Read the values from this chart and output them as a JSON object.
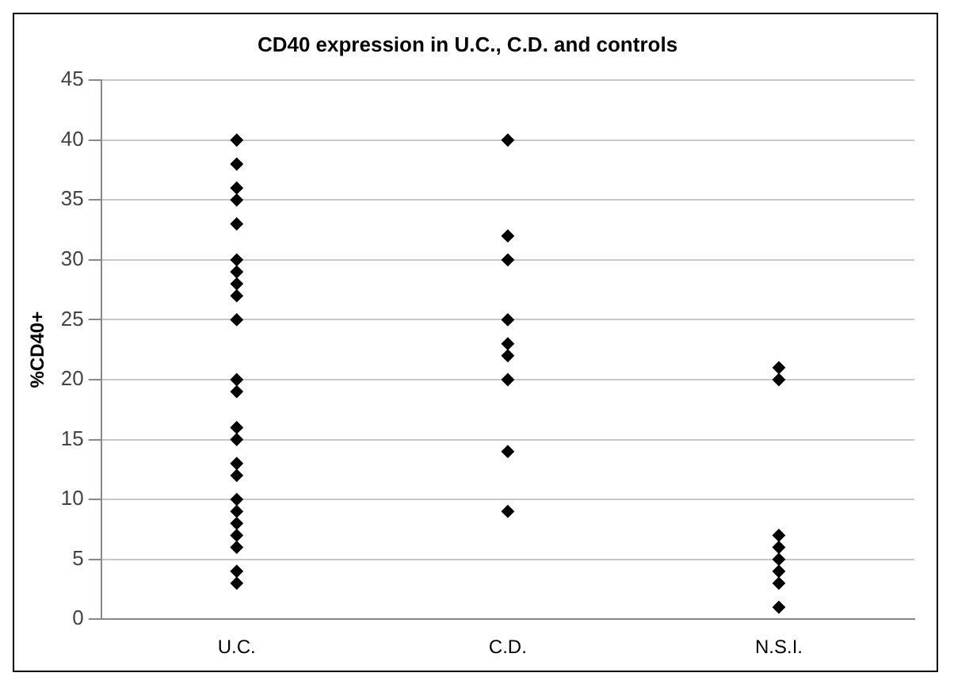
{
  "chart_data": {
    "type": "scatter",
    "title": "CD40 expression in U.C., C.D. and controls",
    "ylabel": "%CD40+",
    "categories": [
      "U.C.",
      "C.D.",
      "N.S.I."
    ],
    "series": [
      {
        "color": "#000000",
        "x": [
          "U.C.",
          "U.C.",
          "U.C.",
          "U.C.",
          "U.C.",
          "U.C.",
          "U.C.",
          "U.C.",
          "U.C.",
          "U.C.",
          "U.C.",
          "U.C.",
          "U.C.",
          "U.C.",
          "U.C.",
          "U.C.",
          "U.C.",
          "U.C.",
          "U.C.",
          "U.C.",
          "U.C.",
          "U.C.",
          "U.C.",
          "C.D.",
          "C.D.",
          "C.D.",
          "C.D.",
          "C.D.",
          "C.D.",
          "C.D.",
          "C.D.",
          "C.D.",
          "N.S.I.",
          "N.S.I.",
          "N.S.I.",
          "N.S.I.",
          "N.S.I.",
          "N.S.I.",
          "N.S.I.",
          "N.S.I."
        ],
        "values": [
          40,
          38,
          36,
          35,
          33,
          30,
          29,
          28,
          27,
          25,
          20,
          19,
          16,
          15,
          13,
          12,
          10,
          9,
          8,
          7,
          6,
          4,
          3,
          40,
          32,
          30,
          25,
          23,
          22,
          20,
          14,
          9,
          21,
          20,
          7,
          6,
          5,
          4,
          3,
          1
        ]
      }
    ],
    "ylim": [
      0,
      45
    ],
    "yticks": [
      0,
      5,
      10,
      15,
      20,
      25,
      30,
      35,
      40,
      45
    ],
    "grid": "y",
    "marker": "diamond",
    "legend": false
  }
}
